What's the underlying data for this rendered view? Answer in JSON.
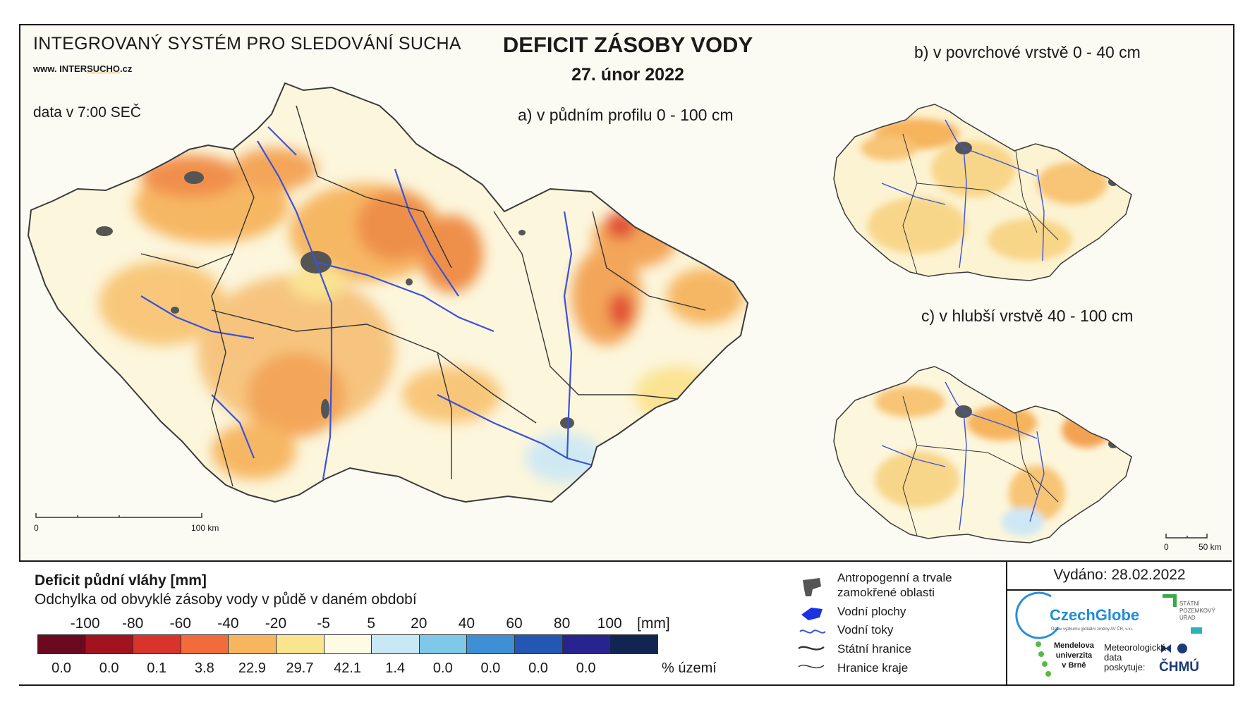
{
  "header": {
    "system_title": "INTEGROVANÝ SYSTÉM PRO SLEDOVÁNÍ SUCHA",
    "site_prefix": "www. INTER",
    "site_highlight": "SUCHO",
    "site_suffix": ".cz",
    "data_time": "data v 7:00 SEČ",
    "title": "DEFICIT ZÁSOBY VODY",
    "date": "27. únor 2022"
  },
  "maps": {
    "a_label": "a) v půdním profilu 0 - 100 cm",
    "b_label": "b) v povrchové vrstvě 0 - 40 cm",
    "c_label": "c) v hlubší vrstvě 40 - 100 cm",
    "scale_a": {
      "start": "0",
      "end": "100 km"
    },
    "scale_c": {
      "start": "0",
      "end": "50 km"
    }
  },
  "legend": {
    "title": "Deficit půdní vláhy  [mm]",
    "subtitle": "Odchylka od obvyklé zásoby vody v půdě v daném období",
    "ticks": [
      "-100",
      "-80",
      "-60",
      "-40",
      "-20",
      "-5",
      "5",
      "20",
      "40",
      "60",
      "80",
      "100"
    ],
    "unit": "[mm]",
    "colors": [
      "#6b0a1f",
      "#a3121f",
      "#d8342c",
      "#f26b3a",
      "#f8b560",
      "#fae58f",
      "#fdfbe3",
      "#c9e8f5",
      "#7ec8ea",
      "#3e8fd6",
      "#2457b3",
      "#27238f",
      "#102552"
    ],
    "percentages": [
      "0.0",
      "0.0",
      "0.1",
      "3.8",
      "22.9",
      "29.7",
      "42.1",
      "1.4",
      "0.0",
      "0.0",
      "0.0",
      "0.0"
    ],
    "percent_unit": "% území"
  },
  "overlay_legend": {
    "items": [
      {
        "label": "Antropogenní a trvale",
        "icon": "urban-area-icon"
      },
      {
        "label": "zamokřené oblasti",
        "icon": ""
      },
      {
        "label": "Vodní plochy",
        "icon": "water-body-icon"
      },
      {
        "label": "Vodní toky",
        "icon": "river-icon"
      },
      {
        "label": "Státní hranice",
        "icon": "state-border-icon"
      },
      {
        "label": "Hranice kraje",
        "icon": "region-border-icon"
      }
    ]
  },
  "footer": {
    "issued": "Vydáno: 28.02.2022",
    "logo_czechglobe": "CzechGlobe",
    "logo_czechglobe_sub": "Ústav výzkumu globální změny AV ČR, v.v.i.",
    "logo_spu": "STÁTNÍ\nPOZEMKOVÝ\nÚŘAD",
    "logo_mendel": "Mendelova\nuniverzita\nv Brně",
    "met_data": "Meteorologická\ndata\nposkytuje:",
    "logo_chmu": "ČHMÚ"
  }
}
